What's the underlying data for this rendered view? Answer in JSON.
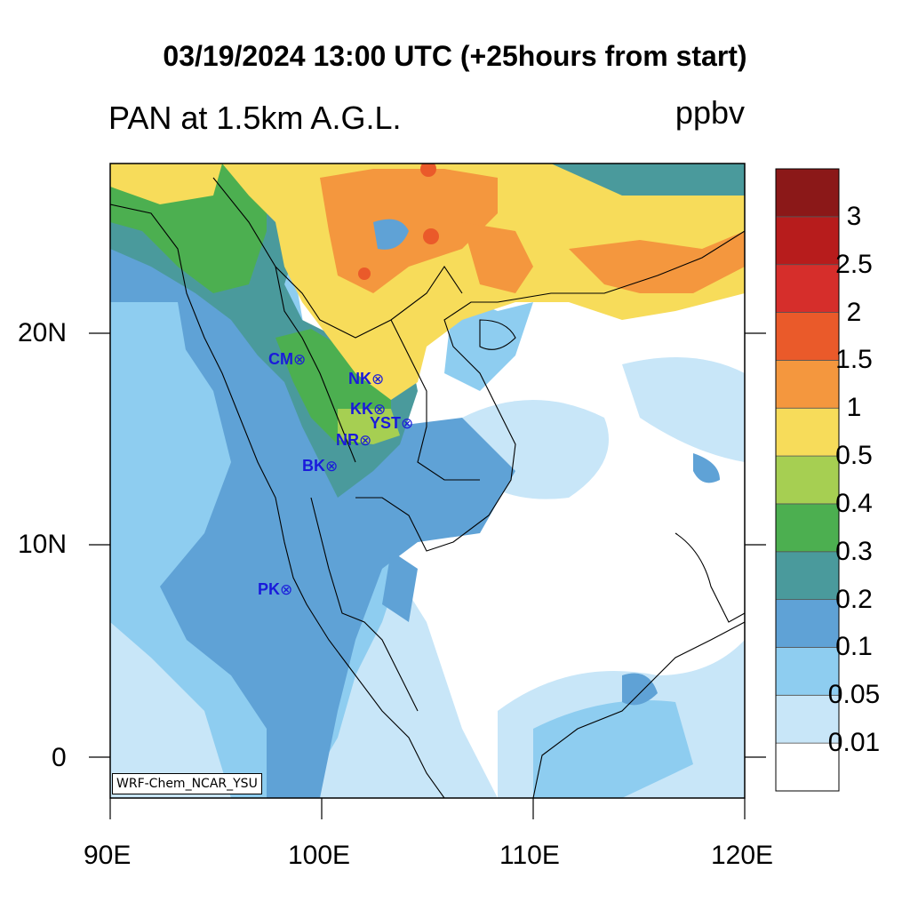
{
  "title": "03/19/2024 13:00 UTC (+25hours from start)",
  "subtitle": "PAN at 1.5km A.G.L.",
  "units": "ppbv",
  "credit": "WRF-Chem_NCAR_YSU",
  "x_ticks": [
    "90E",
    "100E",
    "110E",
    "120E"
  ],
  "y_ticks": [
    "20N",
    "10N",
    "0"
  ],
  "colorbar": {
    "colors": [
      "#ffffff",
      "#c8e6f8",
      "#8ecdf0",
      "#5fa2d6",
      "#4a9a9c",
      "#4caf50",
      "#a6cf52",
      "#f7dc5a",
      "#f4973e",
      "#ea5a2a",
      "#d62e2b",
      "#b71c1c",
      "#8b1818"
    ],
    "labels": [
      "0.01",
      "0.05",
      "0.1",
      "0.2",
      "0.3",
      "0.4",
      "0.5",
      "1",
      "1.5",
      "2",
      "2.5",
      "3"
    ]
  },
  "stations": [
    {
      "code": "CM",
      "symbol": "⊗"
    },
    {
      "code": "NK",
      "symbol": "⊗"
    },
    {
      "code": "KK",
      "symbol": "⊗"
    },
    {
      "code": "YST",
      "symbol": "⊗"
    },
    {
      "code": "NR",
      "symbol": "⊗"
    },
    {
      "code": "BK",
      "symbol": "⊗"
    },
    {
      "code": "PK",
      "symbol": "⊗"
    }
  ]
}
